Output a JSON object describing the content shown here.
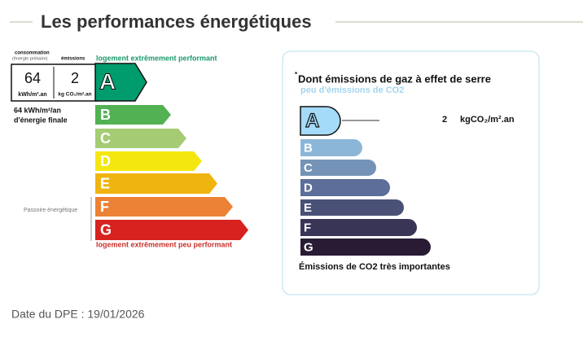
{
  "header": {
    "title": "Les performances énergétiques"
  },
  "energy": {
    "consumption_label": "consommation",
    "consumption_sub": "(énergie primaire)",
    "emissions_label": "émissions",
    "consumption_value": "64",
    "consumption_unit": "kWh/m².an",
    "emissions_value": "2",
    "emissions_unit": "kg CO₂/m².an",
    "top_label": "logement extrêmement performant",
    "bottom_label": "logement extrêmement peu performant",
    "final_line1": "64 kWh/m²/an",
    "final_line2": "d'énergie finale",
    "passoire": "Passoire énergétique",
    "selected": 0,
    "classes": [
      {
        "letter": "A",
        "color": "#009c6d"
      },
      {
        "letter": "B",
        "color": "#52b153"
      },
      {
        "letter": "C",
        "color": "#a5cc74"
      },
      {
        "letter": "D",
        "color": "#f4e70f"
      },
      {
        "letter": "E",
        "color": "#f0b40f"
      },
      {
        "letter": "F",
        "color": "#eb8235"
      },
      {
        "letter": "G",
        "color": "#d7221f"
      }
    ]
  },
  "ghg": {
    "asterisk": "*",
    "title": "Dont émissions de gaz à effet de serre",
    "top_label": "peu d'émissions de CO2",
    "value": "2",
    "unit": "kgCO₂/m².an",
    "bottom_label": "Émissions de CO2 très importantes",
    "selected": 0,
    "classes": [
      {
        "letter": "A",
        "color": "#a4dbf8"
      },
      {
        "letter": "B",
        "color": "#8bb6d7"
      },
      {
        "letter": "C",
        "color": "#7593b7"
      },
      {
        "letter": "D",
        "color": "#5c6e99"
      },
      {
        "letter": "E",
        "color": "#4a5176"
      },
      {
        "letter": "F",
        "color": "#393556"
      },
      {
        "letter": "G",
        "color": "#281b33"
      }
    ]
  },
  "footer": {
    "date": "Date du DPE : 19/01/2026"
  }
}
